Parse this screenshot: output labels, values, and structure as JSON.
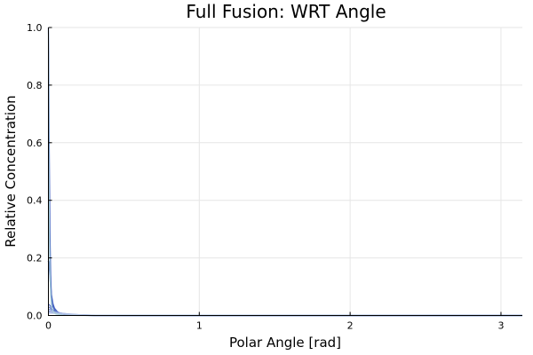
{
  "chart_data": {
    "type": "line",
    "title": "Full Fusion: WRT Angle",
    "xlabel": "Polar Angle [rad]",
    "ylabel": "Relative Concentration",
    "xlim": [
      0,
      3.14159
    ],
    "ylim": [
      0,
      1.0
    ],
    "x_ticks": [
      0,
      1,
      2,
      3
    ],
    "x_tick_labels": [
      "0",
      "1",
      "2",
      "3"
    ],
    "y_ticks": [
      0,
      0.2,
      0.4,
      0.6,
      0.8,
      1.0
    ],
    "y_tick_labels": [
      "0.0",
      "0.2",
      "0.4",
      "0.6",
      "0.8",
      "1.0"
    ],
    "grid": true,
    "legend": "none",
    "series_color": "#3b5bbf",
    "series_colors": [
      "#3b5bbf",
      "#4a67c2",
      "#5a74c8",
      "#6a82cd",
      "#7a8fd3",
      "#8fa2db",
      "#a3b5e3",
      "#b8c7ea",
      "#a9d0d9"
    ],
    "series": [
      {
        "x": [
          0,
          0.002,
          0.005,
          0.01,
          0.015,
          0.02,
          0.03,
          0.05,
          0.08,
          0.12,
          0.18,
          0.3,
          0.6,
          1.0,
          2.0,
          3.14159
        ],
        "values": [
          1.0,
          0.9,
          0.62,
          0.3,
          0.14,
          0.07,
          0.03,
          0.012,
          0.005,
          0.002,
          0.001,
          0.0,
          0.0,
          0.0,
          0.0,
          0.0
        ]
      },
      {
        "x": [
          0,
          0.005,
          0.01,
          0.015,
          0.02,
          0.03,
          0.04,
          0.06,
          0.09,
          0.15,
          0.3,
          1.0,
          3.14159
        ],
        "values": [
          0.19,
          0.175,
          0.14,
          0.1,
          0.07,
          0.04,
          0.025,
          0.012,
          0.005,
          0.002,
          0.0,
          0.0,
          0.0
        ]
      },
      {
        "x": [
          0,
          0.01,
          0.02,
          0.03,
          0.05,
          0.08,
          0.12,
          0.2,
          0.5,
          3.14159
        ],
        "values": [
          0.04,
          0.035,
          0.028,
          0.02,
          0.012,
          0.006,
          0.003,
          0.001,
          0.0,
          0.0
        ]
      },
      {
        "x": [
          0,
          0.01,
          0.02,
          0.04,
          0.06,
          0.1,
          0.15,
          0.2,
          0.5,
          3.14159
        ],
        "values": [
          0.03,
          0.027,
          0.022,
          0.015,
          0.01,
          0.005,
          0.003,
          0.001,
          0.0,
          0.0
        ]
      },
      {
        "x": [
          0,
          0.02,
          0.04,
          0.06,
          0.1,
          0.15,
          0.2,
          0.5,
          3.14159
        ],
        "values": [
          0.022,
          0.019,
          0.015,
          0.011,
          0.007,
          0.004,
          0.002,
          0.0,
          0.0
        ]
      },
      {
        "x": [
          0,
          0.02,
          0.05,
          0.08,
          0.12,
          0.18,
          0.3,
          3.14159
        ],
        "values": [
          0.016,
          0.014,
          0.011,
          0.008,
          0.005,
          0.003,
          0.001,
          0.0
        ]
      },
      {
        "x": [
          0,
          0.03,
          0.06,
          0.1,
          0.15,
          0.2,
          0.3,
          3.14159
        ],
        "values": [
          0.012,
          0.011,
          0.009,
          0.007,
          0.005,
          0.003,
          0.001,
          0.0
        ]
      },
      {
        "x": [
          0,
          0.03,
          0.07,
          0.12,
          0.18,
          0.25,
          3.14159
        ],
        "values": [
          0.008,
          0.0075,
          0.006,
          0.0045,
          0.003,
          0.001,
          0.0
        ]
      },
      {
        "x": [
          0,
          0.0015,
          0.003,
          0.006,
          0.01,
          0.015,
          0.02,
          0.03,
          0.05,
          0.1,
          0.2,
          3.14159
        ],
        "values": [
          0.99,
          0.8,
          0.55,
          0.3,
          0.15,
          0.07,
          0.035,
          0.015,
          0.005,
          0.001,
          0.0,
          0.0
        ]
      }
    ]
  }
}
